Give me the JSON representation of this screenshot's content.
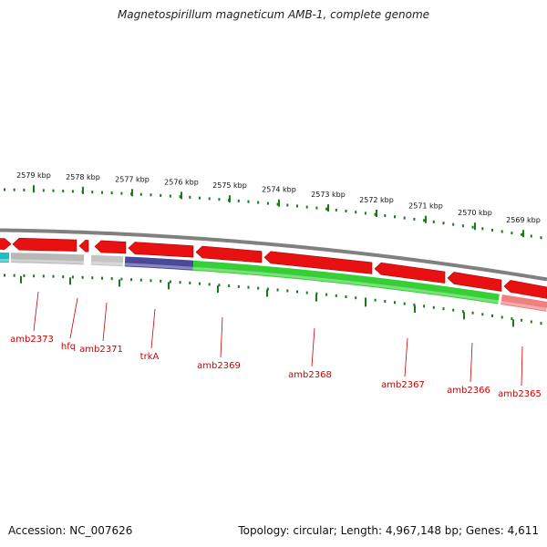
{
  "title": "Magnetospirillum magneticum AMB-1, complete genome",
  "footer": {
    "accession": "Accession: NC_007626",
    "summary": "Topology: circular; Length: 4,967,148 bp; Genes: 4,611"
  },
  "colors": {
    "outer_band": "#808080",
    "cds": "#e81010",
    "tick": "#1a7a1a",
    "label": "#cc0000",
    "scale_text": "#111111"
  },
  "scale": {
    "tick_labels": [
      "2579 kbp",
      "2578 kbp",
      "2577 kbp",
      "2576 kbp",
      "2575 kbp",
      "2574 kbp",
      "2573 kbp",
      "2572 kbp",
      "2571 kbp",
      "2570 kbp",
      "2569 kbp"
    ]
  },
  "segments": [
    {
      "name": "cyan-feature",
      "color": "#18c0c8"
    },
    {
      "name": "gray-feature",
      "color": "#b8b8b8"
    },
    {
      "name": "gray-feature-2",
      "color": "#c4c4c4"
    },
    {
      "name": "trkA",
      "color": "#4a4898"
    },
    {
      "name": "amb2369-2367",
      "color": "#36d036"
    },
    {
      "name": "amb2365",
      "color": "#f08080"
    }
  ],
  "genes": [
    {
      "label": "amb2373"
    },
    {
      "label": "hfq"
    },
    {
      "label": "amb2371"
    },
    {
      "label": "trkA"
    },
    {
      "label": "amb2369"
    },
    {
      "label": "amb2368"
    },
    {
      "label": "amb2367"
    },
    {
      "label": "amb2366"
    },
    {
      "label": "amb2365"
    }
  ]
}
